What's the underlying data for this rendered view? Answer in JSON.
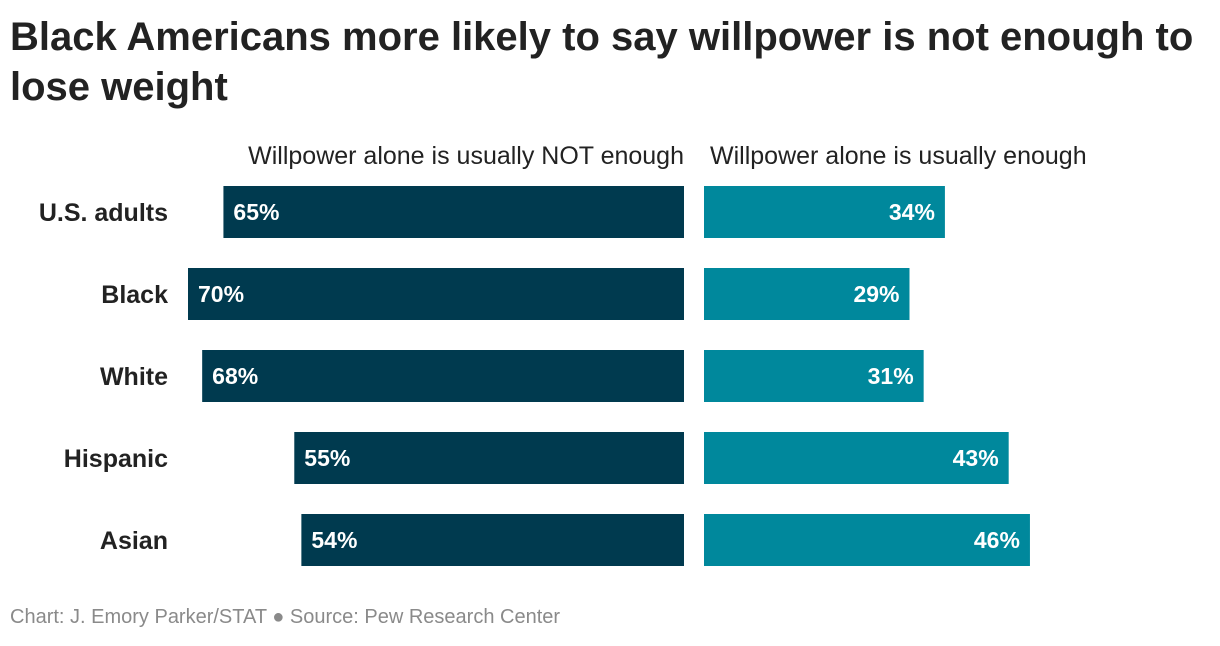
{
  "title": "Black Americans more likely to say willpower is not enough to lose weight",
  "footer": "Chart: J. Emory Parker/STAT ● Source: Pew Research Center",
  "colors": {
    "left_bar": "#003a4f",
    "right_bar": "#00889c",
    "bar_label": "#ffffff",
    "category_label": "#222222"
  },
  "chart_data": {
    "type": "bar",
    "orientation": "horizontal-diverging",
    "categories": [
      "U.S. adults",
      "Black",
      "White",
      "Hispanic",
      "Asian"
    ],
    "series": [
      {
        "name": "Willpower alone is usually NOT enough",
        "values": [
          65,
          70,
          68,
          55,
          54
        ],
        "labels": [
          "65%",
          "70%",
          "68%",
          "55%",
          "54%"
        ]
      },
      {
        "name": "Willpower alone is usually enough",
        "values": [
          34,
          29,
          31,
          43,
          46
        ],
        "labels": [
          "34%",
          "29%",
          "31%",
          "43%",
          "46%"
        ]
      }
    ],
    "unit": "%",
    "xlim": [
      0,
      70
    ],
    "grid": false
  }
}
